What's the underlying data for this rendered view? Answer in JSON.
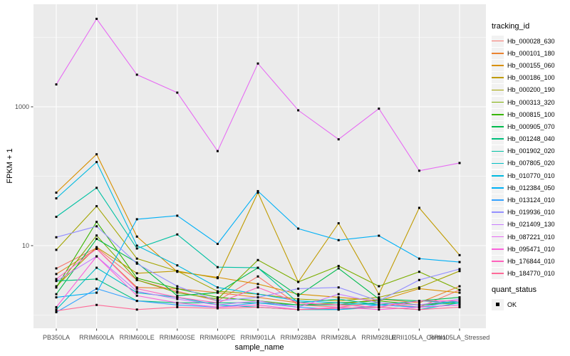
{
  "chart_data": {
    "type": "line",
    "title": "",
    "xlabel": "sample_name",
    "ylabel": "FPKM + 1",
    "y_scale": "log10",
    "y_ticks": [
      1000,
      10
    ],
    "y_tick_labels": [
      "1000",
      "10"
    ],
    "y_minor_gridlines": [
      10000,
      100,
      1
    ],
    "ylim": [
      0.66,
      27000
    ],
    "grid": "on",
    "legend_position": "right",
    "panel_bg": "#EBEBEB",
    "grid_color": "#FFFFFF",
    "tick_label_color": "#4D4D4D",
    "tick_mark_color": "#333333",
    "point_color": "#000000",
    "categories": [
      "PB350LA",
      "RRIM600LA",
      "RRIM600LE",
      "RRIM600SE",
      "RRIM600PE",
      "RRIM901LA",
      "RRIM928BA",
      "RRIM928LA",
      "RRIM928LE",
      "RRII105LA_Control",
      "RRII105LA_Stressed"
    ],
    "legend_title": "tracking_id",
    "quant_legend": {
      "title": "quant_status",
      "items": [
        "OK"
      ]
    },
    "series": [
      {
        "name": "Hb_000028_630",
        "color": "#F8766D",
        "values": [
          4.7,
          9.3,
          3.2,
          2.2,
          1.6,
          3.6,
          1.4,
          1.3,
          1.5,
          1.3,
          2.3
        ]
      },
      {
        "name": "Hb_000101_180",
        "color": "#EA8331",
        "values": [
          3.9,
          9.0,
          2.5,
          2.4,
          2.1,
          1.8,
          1.5,
          1.4,
          1.7,
          1.5,
          2.6
        ]
      },
      {
        "name": "Hb_000155_060",
        "color": "#D89000",
        "values": [
          58,
          207,
          13.5,
          4.2,
          3.5,
          2.8,
          2.0,
          1.8,
          1.6,
          2.4,
          2.1
        ]
      },
      {
        "name": "Hb_000186_100",
        "color": "#C09B00",
        "values": [
          2.6,
          9.5,
          4.0,
          4.3,
          3.4,
          58,
          3.0,
          21,
          2.0,
          35,
          7.3
        ]
      },
      {
        "name": "Hb_000200_190",
        "color": "#A3A500",
        "values": [
          8.7,
          37,
          6.5,
          4.3,
          2.2,
          2.0,
          1.7,
          1.6,
          1.8,
          2.5,
          4.3
        ]
      },
      {
        "name": "Hb_000313_320",
        "color": "#7CAE00",
        "values": [
          2.5,
          14,
          3.2,
          2.1,
          1.7,
          6.2,
          3.0,
          5.1,
          2.6,
          4.2,
          2.3
        ]
      },
      {
        "name": "Hb_000815_100",
        "color": "#39B600",
        "values": [
          2.5,
          22,
          3.4,
          2.4,
          1.8,
          1.6,
          1.4,
          1.5,
          1.6,
          1.4,
          1.5
        ]
      },
      {
        "name": "Hb_000905_070",
        "color": "#00BB4E",
        "values": [
          2.0,
          12.5,
          5.7,
          1.9,
          2.1,
          4.8,
          1.9,
          4.7,
          1.7,
          1.6,
          1.8
        ]
      },
      {
        "name": "Hb_001248_040",
        "color": "#00BF7D",
        "values": [
          3.1,
          3.3,
          1.6,
          1.5,
          1.5,
          1.5,
          1.4,
          1.4,
          1.5,
          1.4,
          1.6
        ]
      },
      {
        "name": "Hb_001902_020",
        "color": "#00C1A3",
        "values": [
          26,
          68,
          9.1,
          14.5,
          4.9,
          4.8,
          1.5,
          1.7,
          1.4,
          1.6,
          1.5
        ]
      },
      {
        "name": "Hb_007805_020",
        "color": "#00BFC4",
        "values": [
          1.2,
          4.8,
          2.1,
          1.8,
          1.4,
          1.3,
          1.2,
          1.2,
          1.3,
          1.2,
          1.5
        ]
      },
      {
        "name": "Hb_010770_010",
        "color": "#00BAE0",
        "values": [
          48,
          160,
          10,
          5.2,
          2.5,
          2.0,
          1.6,
          1.5,
          1.4,
          1.3,
          1.4
        ]
      },
      {
        "name": "Hb_012384_050",
        "color": "#00B0F6",
        "values": [
          1.8,
          2.1,
          24,
          27,
          10.6,
          61,
          17.6,
          12,
          13.9,
          6.5,
          5.8
        ]
      },
      {
        "name": "Hb_013124_010",
        "color": "#35A2FF",
        "values": [
          1.1,
          2.4,
          1.6,
          1.4,
          1.3,
          1.5,
          1.3,
          1.2,
          1.4,
          1.3,
          1.6
        ]
      },
      {
        "name": "Hb_019936_010",
        "color": "#9590FF",
        "values": [
          13.2,
          19,
          5.5,
          2.6,
          1.6,
          1.8,
          2.4,
          2.5,
          1.6,
          3.2,
          4.6
        ]
      },
      {
        "name": "Hb_021409_130",
        "color": "#C77CFF",
        "values": [
          3.1,
          7.0,
          2.2,
          1.7,
          1.4,
          1.6,
          1.3,
          2.0,
          1.5,
          1.4,
          1.7
        ]
      },
      {
        "name": "Hb_087221_010",
        "color": "#E76BF3",
        "values": [
          2100,
          18500,
          2900,
          1600,
          230,
          4200,
          890,
          340,
          940,
          120,
          155
        ]
      },
      {
        "name": "Hb_095471_010",
        "color": "#FA62DB",
        "values": [
          1.3,
          7.0,
          1.9,
          1.5,
          1.3,
          1.4,
          1.2,
          1.3,
          1.2,
          1.3,
          1.4
        ]
      },
      {
        "name": "Hb_176844_010",
        "color": "#FF62BC",
        "values": [
          3.3,
          9.0,
          2.4,
          1.8,
          1.5,
          2.5,
          1.5,
          1.4,
          1.3,
          1.6,
          1.6
        ]
      },
      {
        "name": "Hb_184770_010",
        "color": "#FF6A98",
        "values": [
          1.15,
          1.4,
          1.2,
          1.3,
          1.25,
          1.3,
          1.2,
          1.25,
          1.3,
          1.2,
          1.3
        ]
      }
    ]
  }
}
